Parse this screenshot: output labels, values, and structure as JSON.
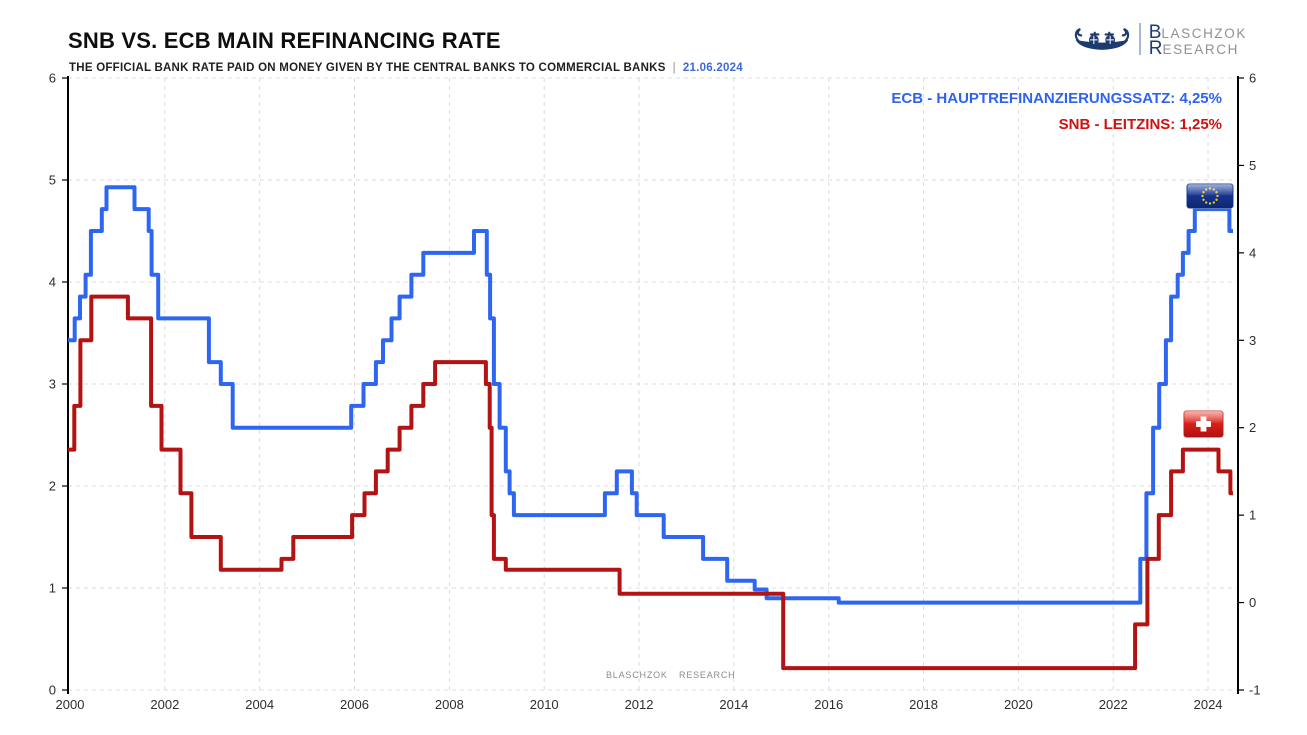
{
  "header": {
    "title": "SNB VS. ECB MAIN REFINANCING RATE",
    "subtitle": "THE OFFICIAL BANK RATE PAID ON MONEY GIVEN BY THE CENTRAL BANKS TO COMMERCIAL BANKS",
    "separator": "|",
    "date": "21.06.2024"
  },
  "logo": {
    "line1_initial": "B",
    "line1_rest": "LASCHZOK",
    "line2_initial": "R",
    "line2_rest": "ESEARCH"
  },
  "legend": {
    "ecb_label": "ECB - HAUPTREFINANZIERUNGSSATZ: 4,25%",
    "snb_label": "SNB - LEITZINS: 1,25%"
  },
  "watermark": "BLASCHZOK RESEARCH",
  "icons": {
    "logo": "viking-ship-icon",
    "ecb_marker": "eu-flag-icon",
    "snb_marker": "swiss-flag-icon"
  },
  "colors": {
    "ecb_line": "#2e66f0",
    "snb_line": "#b31312",
    "legend_ecb": "#2d63ee",
    "legend_snb": "#cf1110",
    "date_text": "#3e6ad8",
    "grid": "#dcdcdc",
    "axis": "#000000",
    "tick_label": "#2e2e2e"
  },
  "chart_data": {
    "type": "line",
    "style": "step-after",
    "title": "SNB vs. ECB main refinancing rate",
    "xlabel": "",
    "ylabel": "",
    "x_axis": {
      "ticks": [
        2000,
        2002,
        2004,
        2006,
        2008,
        2010,
        2012,
        2014,
        2016,
        2018,
        2020,
        2022,
        2024
      ],
      "range": [
        1999.96,
        2024.65
      ]
    },
    "y_axis_left": {
      "ticks": [
        0,
        1,
        2,
        3,
        4,
        5,
        6
      ],
      "range": [
        0,
        6
      ]
    },
    "y_axis_right": {
      "ticks": [
        -1,
        0,
        1,
        2,
        3,
        4,
        5,
        6
      ],
      "range": [
        -1,
        6
      ]
    },
    "grid": "on",
    "legend_position": "top-right",
    "series_axis": "right",
    "series": [
      {
        "name": "ECB - Hauptrefinanzierungssatz",
        "color_key": "ecb_line",
        "current_value": "4,25%",
        "points": [
          [
            2000.0,
            3.0
          ],
          [
            2000.1,
            3.25
          ],
          [
            2000.21,
            3.5
          ],
          [
            2000.33,
            3.75
          ],
          [
            2000.44,
            4.25
          ],
          [
            2000.67,
            4.5
          ],
          [
            2000.77,
            4.75
          ],
          [
            2001.36,
            4.5
          ],
          [
            2001.66,
            4.25
          ],
          [
            2001.72,
            3.75
          ],
          [
            2001.86,
            3.25
          ],
          [
            2002.93,
            2.75
          ],
          [
            2003.18,
            2.5
          ],
          [
            2003.43,
            2.0
          ],
          [
            2005.93,
            2.25
          ],
          [
            2006.19,
            2.5
          ],
          [
            2006.45,
            2.75
          ],
          [
            2006.6,
            3.0
          ],
          [
            2006.78,
            3.25
          ],
          [
            2006.95,
            3.5
          ],
          [
            2007.2,
            3.75
          ],
          [
            2007.45,
            4.0
          ],
          [
            2008.52,
            4.25
          ],
          [
            2008.79,
            3.75
          ],
          [
            2008.86,
            3.25
          ],
          [
            2008.94,
            2.5
          ],
          [
            2009.06,
            2.0
          ],
          [
            2009.19,
            1.5
          ],
          [
            2009.27,
            1.25
          ],
          [
            2009.36,
            1.0
          ],
          [
            2011.28,
            1.25
          ],
          [
            2011.53,
            1.5
          ],
          [
            2011.85,
            1.25
          ],
          [
            2011.95,
            1.0
          ],
          [
            2012.52,
            0.75
          ],
          [
            2013.35,
            0.5
          ],
          [
            2013.86,
            0.25
          ],
          [
            2014.44,
            0.15
          ],
          [
            2014.69,
            0.05
          ],
          [
            2016.21,
            0.0
          ],
          [
            2022.57,
            0.5
          ],
          [
            2022.7,
            1.25
          ],
          [
            2022.84,
            2.0
          ],
          [
            2022.97,
            2.5
          ],
          [
            2023.11,
            3.0
          ],
          [
            2023.22,
            3.5
          ],
          [
            2023.36,
            3.75
          ],
          [
            2023.47,
            4.0
          ],
          [
            2023.59,
            4.25
          ],
          [
            2023.72,
            4.5
          ],
          [
            2024.45,
            4.25
          ]
        ]
      },
      {
        "name": "SNB - Leitzins",
        "color_key": "snb_line",
        "current_value": "1,25%",
        "points": [
          [
            2000.0,
            1.75
          ],
          [
            2000.09,
            2.25
          ],
          [
            2000.22,
            3.0
          ],
          [
            2000.45,
            3.5
          ],
          [
            2001.22,
            3.25
          ],
          [
            2001.71,
            2.25
          ],
          [
            2001.93,
            1.75
          ],
          [
            2002.33,
            1.25
          ],
          [
            2002.56,
            0.75
          ],
          [
            2003.18,
            0.375
          ],
          [
            2004.46,
            0.5
          ],
          [
            2004.71,
            0.75
          ],
          [
            2005.95,
            1.0
          ],
          [
            2006.21,
            1.25
          ],
          [
            2006.45,
            1.5
          ],
          [
            2006.7,
            1.75
          ],
          [
            2006.95,
            2.0
          ],
          [
            2007.2,
            2.25
          ],
          [
            2007.45,
            2.5
          ],
          [
            2007.7,
            2.75
          ],
          [
            2008.77,
            2.5
          ],
          [
            2008.85,
            2.0
          ],
          [
            2008.89,
            1.0
          ],
          [
            2008.94,
            0.5
          ],
          [
            2009.19,
            0.375
          ],
          [
            2011.59,
            0.1
          ],
          [
            2015.04,
            -0.75
          ],
          [
            2022.46,
            -0.25
          ],
          [
            2022.72,
            0.5
          ],
          [
            2022.96,
            1.0
          ],
          [
            2023.22,
            1.5
          ],
          [
            2023.47,
            1.75
          ],
          [
            2024.22,
            1.5
          ],
          [
            2024.47,
            1.25
          ]
        ]
      }
    ]
  }
}
